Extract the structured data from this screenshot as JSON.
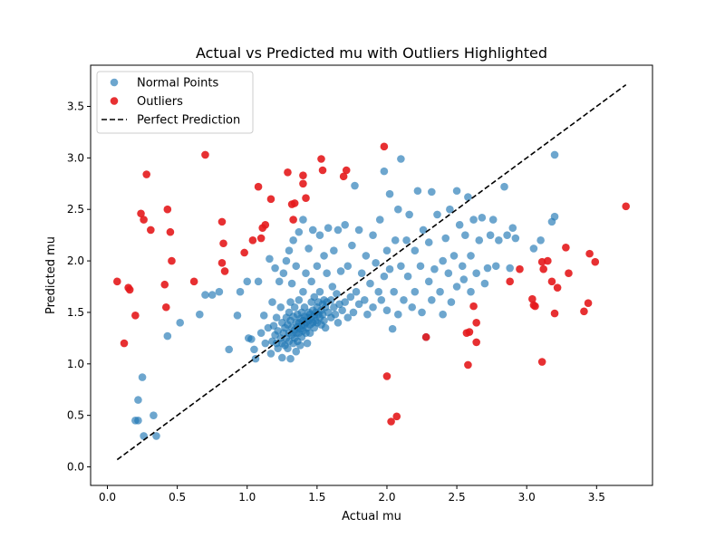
{
  "chart_data": {
    "type": "scatter",
    "title": "Actual vs Predicted mu with Outliers Highlighted",
    "xlabel": "Actual mu",
    "ylabel": "Predicted mu",
    "xlim": [
      -0.12,
      3.9
    ],
    "ylim": [
      -0.18,
      3.9
    ],
    "xticks": [
      0.0,
      0.5,
      1.0,
      1.5,
      2.0,
      2.5,
      3.0,
      3.5
    ],
    "xtick_labels": [
      "0.0",
      "0.5",
      "1.0",
      "1.5",
      "2.0",
      "2.5",
      "3.0",
      "3.5"
    ],
    "yticks": [
      0.0,
      0.5,
      1.0,
      1.5,
      2.0,
      2.5,
      3.0,
      3.5
    ],
    "ytick_labels": [
      "0.0",
      "0.5",
      "1.0",
      "1.5",
      "2.0",
      "2.5",
      "3.0",
      "3.5"
    ],
    "grid": false,
    "legend_position": "top-left",
    "series": [
      {
        "name": "Normal Points",
        "color": "#1f77b4",
        "alpha": 0.65,
        "points": [
          [
            0.2,
            0.45
          ],
          [
            0.22,
            0.45
          ],
          [
            0.22,
            0.65
          ],
          [
            0.25,
            0.87
          ],
          [
            0.26,
            0.3
          ],
          [
            0.33,
            0.5
          ],
          [
            0.35,
            0.3
          ],
          [
            0.43,
            1.27
          ],
          [
            0.52,
            1.4
          ],
          [
            0.66,
            1.48
          ],
          [
            0.7,
            1.67
          ],
          [
            0.75,
            1.67
          ],
          [
            0.8,
            1.7
          ],
          [
            0.87,
            1.14
          ],
          [
            0.93,
            1.47
          ],
          [
            0.95,
            1.7
          ],
          [
            1.0,
            1.8
          ],
          [
            1.01,
            1.25
          ],
          [
            1.03,
            1.24
          ],
          [
            1.05,
            1.14
          ],
          [
            1.06,
            1.05
          ],
          [
            1.08,
            1.8
          ],
          [
            1.1,
            1.3
          ],
          [
            1.12,
            1.47
          ],
          [
            1.13,
            1.2
          ],
          [
            1.15,
            1.35
          ],
          [
            1.16,
            2.02
          ],
          [
            1.17,
            1.1
          ],
          [
            1.18,
            1.22
          ],
          [
            1.18,
            1.6
          ],
          [
            1.19,
            1.37
          ],
          [
            1.2,
            1.28
          ],
          [
            1.2,
            1.93
          ],
          [
            1.21,
            1.2
          ],
          [
            1.21,
            1.45
          ],
          [
            1.22,
            1.15
          ],
          [
            1.22,
            1.32
          ],
          [
            1.23,
            1.8
          ],
          [
            1.24,
            1.25
          ],
          [
            1.24,
            1.55
          ],
          [
            1.25,
            1.06
          ],
          [
            1.25,
            1.2
          ],
          [
            1.25,
            1.4
          ],
          [
            1.26,
            1.3
          ],
          [
            1.26,
            1.88
          ],
          [
            1.27,
            1.35
          ],
          [
            1.27,
            1.18
          ],
          [
            1.28,
            1.25
          ],
          [
            1.28,
            1.45
          ],
          [
            1.28,
            2.0
          ],
          [
            1.29,
            1.15
          ],
          [
            1.29,
            1.38
          ],
          [
            1.3,
            1.22
          ],
          [
            1.3,
            1.5
          ],
          [
            1.3,
            1.3
          ],
          [
            1.3,
            2.1
          ],
          [
            1.31,
            1.05
          ],
          [
            1.31,
            1.42
          ],
          [
            1.31,
            1.6
          ],
          [
            1.32,
            1.28
          ],
          [
            1.32,
            1.35
          ],
          [
            1.32,
            1.78
          ],
          [
            1.33,
            1.2
          ],
          [
            1.33,
            1.46
          ],
          [
            1.33,
            2.2
          ],
          [
            1.34,
            1.33
          ],
          [
            1.34,
            1.25
          ],
          [
            1.34,
            1.55
          ],
          [
            1.35,
            1.4
          ],
          [
            1.35,
            1.12
          ],
          [
            1.35,
            1.3
          ],
          [
            1.35,
            1.95
          ],
          [
            1.36,
            1.36
          ],
          [
            1.36,
            1.48
          ],
          [
            1.36,
            1.22
          ],
          [
            1.37,
            1.4
          ],
          [
            1.37,
            1.3
          ],
          [
            1.37,
            1.62
          ],
          [
            1.37,
            2.28
          ],
          [
            1.38,
            1.34
          ],
          [
            1.38,
            1.44
          ],
          [
            1.38,
            1.18
          ],
          [
            1.39,
            1.5
          ],
          [
            1.39,
            1.37
          ],
          [
            1.39,
            1.26
          ],
          [
            1.4,
            1.42
          ],
          [
            1.4,
            1.32
          ],
          [
            1.4,
            1.7
          ],
          [
            1.4,
            2.4
          ],
          [
            1.41,
            1.46
          ],
          [
            1.41,
            1.38
          ],
          [
            1.41,
            1.55
          ],
          [
            1.42,
            1.3
          ],
          [
            1.42,
            1.4
          ],
          [
            1.42,
            1.88
          ],
          [
            1.43,
            1.45
          ],
          [
            1.43,
            1.35
          ],
          [
            1.43,
            1.2
          ],
          [
            1.44,
            1.5
          ],
          [
            1.44,
            1.42
          ],
          [
            1.44,
            2.12
          ],
          [
            1.45,
            1.38
          ],
          [
            1.45,
            1.48
          ],
          [
            1.45,
            1.3
          ],
          [
            1.46,
            1.6
          ],
          [
            1.46,
            1.45
          ],
          [
            1.46,
            1.8
          ],
          [
            1.47,
            1.52
          ],
          [
            1.47,
            1.4
          ],
          [
            1.47,
            2.3
          ],
          [
            1.48,
            1.47
          ],
          [
            1.48,
            1.35
          ],
          [
            1.48,
            1.65
          ],
          [
            1.49,
            1.5
          ],
          [
            1.49,
            1.42
          ],
          [
            1.5,
            1.55
          ],
          [
            1.5,
            1.4
          ],
          [
            1.5,
            1.95
          ],
          [
            1.51,
            1.48
          ],
          [
            1.51,
            1.6
          ],
          [
            1.52,
            1.45
          ],
          [
            1.52,
            1.7
          ],
          [
            1.52,
            2.25
          ],
          [
            1.53,
            1.52
          ],
          [
            1.53,
            1.38
          ],
          [
            1.54,
            1.58
          ],
          [
            1.54,
            1.48
          ],
          [
            1.55,
            1.62
          ],
          [
            1.55,
            1.42
          ],
          [
            1.55,
            2.05
          ],
          [
            1.56,
            1.55
          ],
          [
            1.56,
            1.35
          ],
          [
            1.57,
            1.6
          ],
          [
            1.57,
            1.88
          ],
          [
            1.58,
            1.5
          ],
          [
            1.58,
            2.32
          ],
          [
            1.6,
            1.62
          ],
          [
            1.6,
            1.45
          ],
          [
            1.61,
            1.75
          ],
          [
            1.62,
            1.55
          ],
          [
            1.62,
            2.1
          ],
          [
            1.63,
            1.48
          ],
          [
            1.64,
            1.68
          ],
          [
            1.65,
            1.4
          ],
          [
            1.65,
            2.3
          ],
          [
            1.66,
            1.58
          ],
          [
            1.67,
            1.9
          ],
          [
            1.68,
            1.52
          ],
          [
            1.7,
            1.6
          ],
          [
            1.7,
            2.35
          ],
          [
            1.72,
            1.45
          ],
          [
            1.72,
            1.95
          ],
          [
            1.74,
            1.65
          ],
          [
            1.75,
            2.15
          ],
          [
            1.76,
            1.5
          ],
          [
            1.77,
            2.73
          ],
          [
            1.78,
            1.7
          ],
          [
            1.8,
            1.58
          ],
          [
            1.8,
            2.3
          ],
          [
            1.82,
            1.88
          ],
          [
            1.84,
            1.62
          ],
          [
            1.85,
            2.05
          ],
          [
            1.86,
            1.48
          ],
          [
            1.88,
            1.78
          ],
          [
            1.9,
            2.25
          ],
          [
            1.9,
            1.55
          ],
          [
            1.92,
            1.98
          ],
          [
            1.94,
            1.7
          ],
          [
            1.95,
            2.4
          ],
          [
            1.96,
            1.62
          ],
          [
            1.98,
            2.87
          ],
          [
            1.98,
            1.85
          ],
          [
            2.0,
            1.52
          ],
          [
            2.0,
            2.1
          ],
          [
            2.02,
            1.92
          ],
          [
            2.02,
            2.65
          ],
          [
            2.04,
            1.34
          ],
          [
            2.05,
            1.7
          ],
          [
            2.06,
            2.2
          ],
          [
            2.08,
            1.48
          ],
          [
            2.08,
            2.5
          ],
          [
            2.1,
            1.95
          ],
          [
            2.1,
            2.99
          ],
          [
            2.12,
            1.62
          ],
          [
            2.14,
            2.2
          ],
          [
            2.15,
            1.85
          ],
          [
            2.16,
            2.45
          ],
          [
            2.18,
            1.55
          ],
          [
            2.2,
            2.1
          ],
          [
            2.2,
            1.7
          ],
          [
            2.22,
            2.68
          ],
          [
            2.24,
            1.95
          ],
          [
            2.25,
            1.5
          ],
          [
            2.26,
            2.3
          ],
          [
            2.28,
            1.26
          ],
          [
            2.3,
            1.8
          ],
          [
            2.3,
            2.18
          ],
          [
            2.32,
            1.62
          ],
          [
            2.32,
            2.67
          ],
          [
            2.34,
            1.92
          ],
          [
            2.36,
            2.45
          ],
          [
            2.38,
            1.7
          ],
          [
            2.4,
            2.0
          ],
          [
            2.4,
            1.48
          ],
          [
            2.42,
            2.22
          ],
          [
            2.44,
            1.88
          ],
          [
            2.45,
            2.5
          ],
          [
            2.46,
            1.6
          ],
          [
            2.48,
            2.05
          ],
          [
            2.5,
            2.68
          ],
          [
            2.5,
            1.75
          ],
          [
            2.52,
            2.35
          ],
          [
            2.54,
            1.95
          ],
          [
            2.55,
            1.82
          ],
          [
            2.56,
            2.25
          ],
          [
            2.58,
            2.62
          ],
          [
            2.6,
            1.7
          ],
          [
            2.6,
            2.05
          ],
          [
            2.62,
            2.4
          ],
          [
            2.64,
            1.88
          ],
          [
            2.66,
            2.2
          ],
          [
            2.68,
            2.42
          ],
          [
            2.7,
            1.78
          ],
          [
            2.72,
            1.93
          ],
          [
            2.74,
            2.25
          ],
          [
            2.76,
            2.4
          ],
          [
            2.78,
            1.95
          ],
          [
            2.8,
            2.2
          ],
          [
            2.84,
            2.72
          ],
          [
            2.86,
            2.25
          ],
          [
            2.88,
            1.93
          ],
          [
            2.9,
            2.32
          ],
          [
            2.92,
            2.22
          ],
          [
            3.05,
            2.12
          ],
          [
            3.1,
            2.2
          ],
          [
            3.18,
            2.38
          ],
          [
            3.2,
            2.43
          ],
          [
            3.2,
            3.03
          ]
        ]
      },
      {
        "name": "Outliers",
        "color": "#e41a1c",
        "alpha": 0.9,
        "points": [
          [
            0.07,
            1.8
          ],
          [
            0.12,
            1.2
          ],
          [
            0.15,
            1.74
          ],
          [
            0.16,
            1.72
          ],
          [
            0.2,
            1.47
          ],
          [
            0.24,
            2.46
          ],
          [
            0.26,
            2.4
          ],
          [
            0.28,
            2.84
          ],
          [
            0.31,
            2.3
          ],
          [
            0.41,
            1.77
          ],
          [
            0.42,
            1.55
          ],
          [
            0.43,
            2.5
          ],
          [
            0.45,
            2.28
          ],
          [
            0.46,
            2.0
          ],
          [
            0.62,
            1.8
          ],
          [
            0.7,
            3.03
          ],
          [
            0.82,
            2.38
          ],
          [
            0.82,
            1.98
          ],
          [
            0.83,
            2.17
          ],
          [
            0.84,
            1.9
          ],
          [
            0.98,
            2.08
          ],
          [
            1.04,
            2.2
          ],
          [
            1.08,
            2.72
          ],
          [
            1.1,
            2.22
          ],
          [
            1.11,
            2.32
          ],
          [
            1.13,
            2.35
          ],
          [
            1.17,
            2.6
          ],
          [
            1.29,
            2.86
          ],
          [
            1.32,
            2.55
          ],
          [
            1.33,
            2.4
          ],
          [
            1.34,
            2.56
          ],
          [
            1.4,
            2.83
          ],
          [
            1.4,
            2.75
          ],
          [
            1.42,
            2.61
          ],
          [
            1.53,
            2.99
          ],
          [
            1.54,
            2.88
          ],
          [
            1.69,
            2.82
          ],
          [
            1.71,
            2.88
          ],
          [
            1.98,
            3.11
          ],
          [
            2.0,
            0.88
          ],
          [
            2.03,
            0.44
          ],
          [
            2.07,
            0.49
          ],
          [
            2.28,
            1.26
          ],
          [
            2.57,
            1.3
          ],
          [
            2.58,
            0.99
          ],
          [
            2.59,
            1.31
          ],
          [
            2.62,
            1.56
          ],
          [
            2.64,
            1.4
          ],
          [
            2.64,
            1.21
          ],
          [
            2.88,
            1.8
          ],
          [
            2.95,
            1.92
          ],
          [
            3.04,
            1.63
          ],
          [
            3.05,
            1.57
          ],
          [
            3.06,
            1.56
          ],
          [
            3.11,
            1.02
          ],
          [
            3.11,
            1.99
          ],
          [
            3.12,
            1.92
          ],
          [
            3.15,
            2.0
          ],
          [
            3.18,
            1.8
          ],
          [
            3.2,
            1.49
          ],
          [
            3.22,
            1.74
          ],
          [
            3.28,
            2.13
          ],
          [
            3.3,
            1.88
          ],
          [
            3.41,
            1.51
          ],
          [
            3.44,
            1.59
          ],
          [
            3.45,
            2.07
          ],
          [
            3.49,
            1.99
          ],
          [
            3.71,
            2.53
          ]
        ]
      },
      {
        "name": "Perfect Prediction",
        "color": "#000000",
        "line_style": "dashed",
        "points": [
          [
            0.07,
            0.07
          ],
          [
            3.71,
            3.71
          ]
        ]
      }
    ]
  }
}
